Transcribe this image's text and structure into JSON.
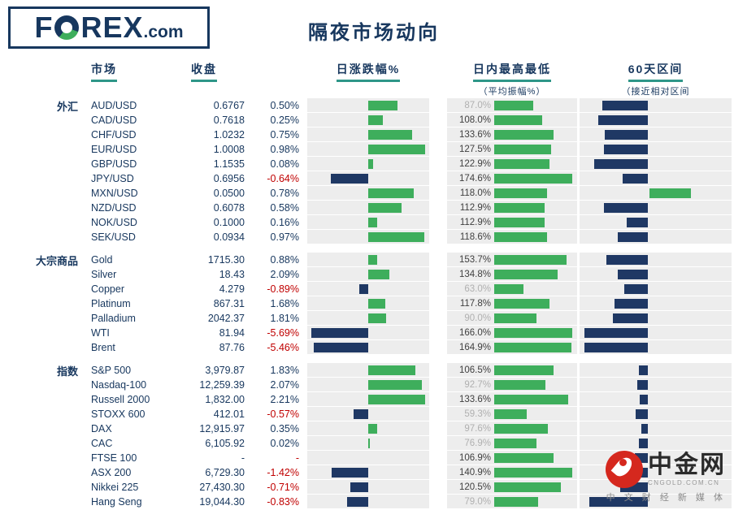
{
  "logo": {
    "f": "F",
    "rex": "REX",
    "com": ".com"
  },
  "title": "隔夜市场动向",
  "header": {
    "market": "市场",
    "close": "收盘",
    "daily_change": "日涨跌幅%",
    "intraday": "日内最高最低",
    "intraday_sub": "（平均振幅%）",
    "range60": "60天区间",
    "range60_sub": "（接近相对区间"
  },
  "colors": {
    "navy": "#1F3864",
    "green": "#3EAE5C",
    "red": "#C00000",
    "header_navy": "#17375E",
    "underline_teal": "#2E9688",
    "chart_bg": "#EDEDED",
    "dim_label": "#B0B0B0"
  },
  "chart_data": {
    "type": "table",
    "title": "隔夜市场动向",
    "columns": [
      "市场",
      "收盘",
      "日涨跌幅%",
      "日内最高最低（平均振幅%）",
      "60天区间（接近相对区间）"
    ],
    "notes": "chg_val = daily change percent (bar right green / left navy); amp_val = intraday amplitude percent (green bar); r60 = estimated 60-day relative range position, negative = navy bar left of axis, positive = green bar right of axis",
    "groups": [
      {
        "label": "外汇",
        "rows": [
          {
            "name": "AUD/USD",
            "close": "0.6767",
            "chg": "0.50%",
            "chg_val": 0.5,
            "amp": "87.0%",
            "amp_val": 87.0,
            "r60": -68
          },
          {
            "name": "CAD/USD",
            "close": "0.7618",
            "chg": "0.25%",
            "chg_val": 0.25,
            "amp": "108.0%",
            "amp_val": 108.0,
            "r60": -75
          },
          {
            "name": "CHF/USD",
            "close": "1.0232",
            "chg": "0.75%",
            "chg_val": 0.75,
            "amp": "133.6%",
            "amp_val": 133.6,
            "r60": -65
          },
          {
            "name": "EUR/USD",
            "close": "1.0008",
            "chg": "0.98%",
            "chg_val": 0.98,
            "amp": "127.5%",
            "amp_val": 127.5,
            "r60": -66
          },
          {
            "name": "GBP/USD",
            "close": "1.1535",
            "chg": "0.08%",
            "chg_val": 0.08,
            "amp": "122.9%",
            "amp_val": 122.9,
            "r60": -80
          },
          {
            "name": "JPY/USD",
            "close": "0.6956",
            "chg": "-0.64%",
            "chg_val": -0.64,
            "amp": "174.6%",
            "amp_val": 174.6,
            "r60": -38
          },
          {
            "name": "MXN/USD",
            "close": "0.0500",
            "chg": "0.78%",
            "chg_val": 0.78,
            "amp": "118.0%",
            "amp_val": 118.0,
            "r60": 62
          },
          {
            "name": "NZD/USD",
            "close": "0.6078",
            "chg": "0.58%",
            "chg_val": 0.58,
            "amp": "112.9%",
            "amp_val": 112.9,
            "r60": -66
          },
          {
            "name": "NOK/USD",
            "close": "0.1000",
            "chg": "0.16%",
            "chg_val": 0.16,
            "amp": "112.9%",
            "amp_val": 112.9,
            "r60": -32
          },
          {
            "name": "SEK/USD",
            "close": "0.0934",
            "chg": "0.97%",
            "chg_val": 0.97,
            "amp": "118.6%",
            "amp_val": 118.6,
            "r60": -45
          }
        ]
      },
      {
        "label": "大宗商品",
        "rows": [
          {
            "name": "Gold",
            "close": "1715.30",
            "chg": "0.88%",
            "chg_val": 0.88,
            "amp": "153.7%",
            "amp_val": 153.7,
            "r60": -62
          },
          {
            "name": "Silver",
            "close": "18.43",
            "chg": "2.09%",
            "chg_val": 2.09,
            "amp": "134.8%",
            "amp_val": 134.8,
            "r60": -45
          },
          {
            "name": "Copper",
            "close": "4.279",
            "chg": "-0.89%",
            "chg_val": -0.89,
            "amp": "63.0%",
            "amp_val": 63.0,
            "r60": -35
          },
          {
            "name": "Platinum",
            "close": "867.31",
            "chg": "1.68%",
            "chg_val": 1.68,
            "amp": "117.8%",
            "amp_val": 117.8,
            "r60": -50
          },
          {
            "name": "Palladium",
            "close": "2042.37",
            "chg": "1.81%",
            "chg_val": 1.81,
            "amp": "90.0%",
            "amp_val": 90.0,
            "r60": -53
          },
          {
            "name": "WTI",
            "close": "81.94",
            "chg": "-5.69%",
            "chg_val": -5.69,
            "amp": "166.0%",
            "amp_val": 166.0,
            "r60": -95
          },
          {
            "name": "Brent",
            "close": "87.76",
            "chg": "-5.46%",
            "chg_val": -5.46,
            "amp": "164.9%",
            "amp_val": 164.9,
            "r60": -95
          }
        ]
      },
      {
        "label": "指数",
        "rows": [
          {
            "name": "S&P 500",
            "close": "3,979.87",
            "chg": "1.83%",
            "chg_val": 1.83,
            "amp": "106.5%",
            "amp_val": 106.5,
            "r60": -14
          },
          {
            "name": "Nasdaq-100",
            "close": "12,259.39",
            "chg": "2.07%",
            "chg_val": 2.07,
            "amp": "92.7%",
            "amp_val": 92.7,
            "r60": -16
          },
          {
            "name": "Russell 2000",
            "close": "1,832.00",
            "chg": "2.21%",
            "chg_val": 2.21,
            "amp": "133.6%",
            "amp_val": 133.6,
            "r60": -12
          },
          {
            "name": "STOXX 600",
            "close": "412.01",
            "chg": "-0.57%",
            "chg_val": -0.57,
            "amp": "59.3%",
            "amp_val": 59.3,
            "r60": -18
          },
          {
            "name": "DAX",
            "close": "12,915.97",
            "chg": "0.35%",
            "chg_val": 0.35,
            "amp": "97.6%",
            "amp_val": 97.6,
            "r60": -10
          },
          {
            "name": "CAC",
            "close": "6,105.92",
            "chg": "0.02%",
            "chg_val": 0.02,
            "amp": "76.9%",
            "amp_val": 76.9,
            "r60": -13
          },
          {
            "name": "FTSE 100",
            "close": "-",
            "chg": "-",
            "chg_val": null,
            "amp": "106.9%",
            "amp_val": 106.9,
            "r60": -20
          },
          {
            "name": "ASX 200",
            "close": "6,729.30",
            "chg": "-1.42%",
            "chg_val": -1.42,
            "amp": "140.9%",
            "amp_val": 140.9,
            "r60": -30
          },
          {
            "name": "Nikkei 225",
            "close": "27,430.30",
            "chg": "-0.71%",
            "chg_val": -0.71,
            "amp": "120.5%",
            "amp_val": 120.5,
            "r60": -42
          },
          {
            "name": "Hang Seng",
            "close": "19,044.30",
            "chg": "-0.83%",
            "chg_val": -0.83,
            "amp": "79.0%",
            "amp_val": 79.0,
            "r60": -88
          }
        ]
      }
    ]
  },
  "watermark": {
    "name": "中金网",
    "domain": "CNGOLD.COM.CN",
    "tagline": "中 文 财 经 新 媒 体"
  }
}
